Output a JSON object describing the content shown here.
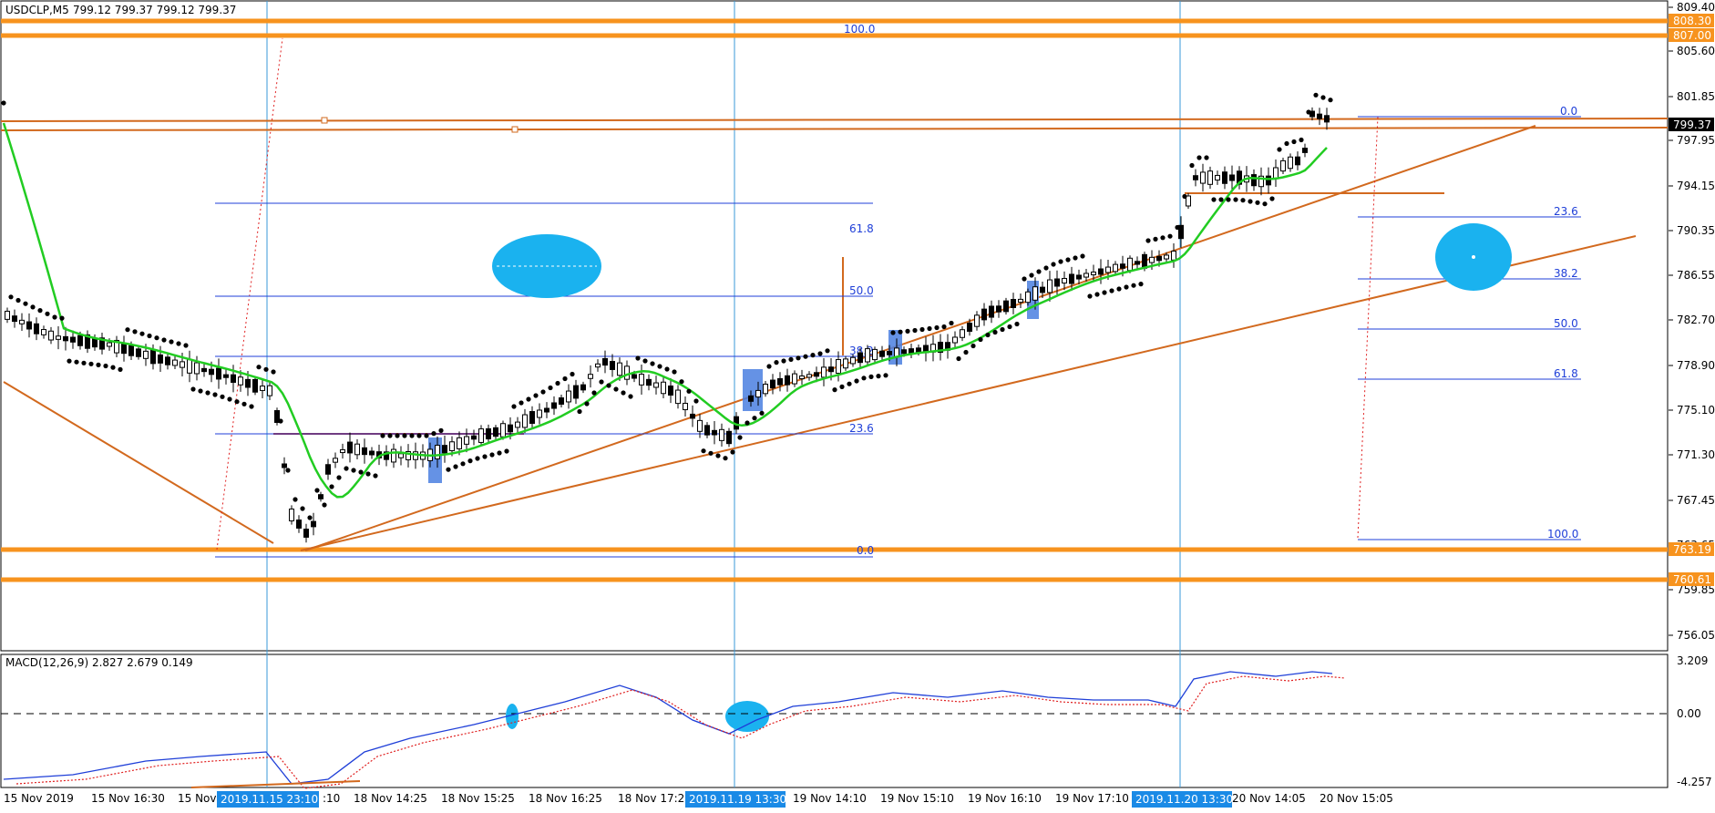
{
  "header": {
    "symbol": "USDCLP,M5",
    "quote": "799.12 799.37 799.12 799.37"
  },
  "price_axis": {
    "ticks": [
      "809.40",
      "805.60",
      "801.85",
      "797.95",
      "794.15",
      "790.35",
      "786.55",
      "782.70",
      "778.90",
      "775.10",
      "771.30",
      "767.45",
      "763.65",
      "759.85",
      "756.05"
    ],
    "current_price": "799.37",
    "levels": [
      "808.30",
      "807.00",
      "763.19",
      "760.61"
    ]
  },
  "macd": {
    "label": "MACD(12,26,9) 2.827 2.679 0.149",
    "ticks": [
      "3.209",
      "0.00",
      "-4.257"
    ]
  },
  "time_axis": {
    "labels": [
      "15 Nov 2019",
      "15 Nov 16:30",
      "15 Nov",
      "18 Nov 14:25",
      "18 Nov 15:25",
      "18 Nov 16:25",
      "18 Nov 17:25",
      "19 Nov 14:10",
      "19 Nov 15:10",
      "19 Nov 16:10",
      "19 Nov 17:10",
      "20 Nov 14:05",
      "20 Nov 15:05"
    ],
    "crosshair_labels": [
      "2019.11.15 23:10",
      "2019.11.19 13:30",
      "2019.11.20 13:30"
    ],
    "partial_label": ":10"
  },
  "fib_left": [
    "100.0",
    "61.8",
    "50.0",
    "38.2",
    "23.6",
    "0.0"
  ],
  "fib_right": [
    "0.0",
    "23.6",
    "38.2",
    "50.0",
    "61.8",
    "100.0"
  ],
  "colors": {
    "candle_up": "#ffffff",
    "candle_down": "#000000",
    "ma": "#22cc22",
    "sar": "#000000",
    "level": "#f7931e",
    "trend": "#d2691e",
    "fib": "#1f3fd8",
    "highlight": "#1ab2ef",
    "vline": "#3a9ad9",
    "macd_main": "#1f3fd8",
    "macd_signal": "#e02020",
    "price_tag_bg": "#000000",
    "level_tag_bg": "#f7931e"
  }
}
